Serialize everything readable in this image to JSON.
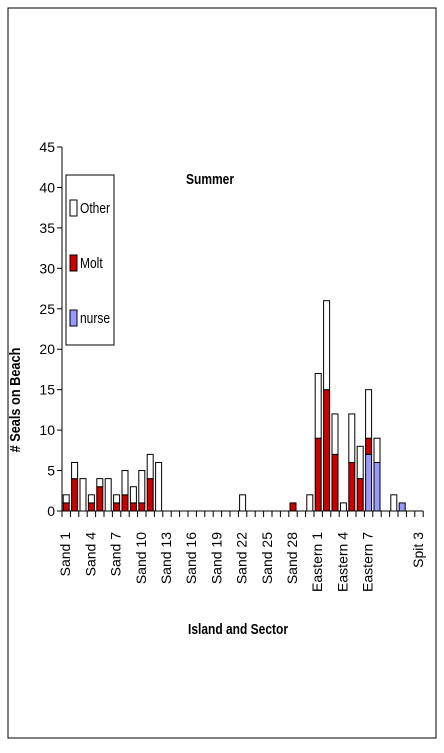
{
  "chart_data": {
    "type": "bar",
    "stacked": true,
    "title": "Summer",
    "x_label": "Island and Sector",
    "y_label": "# Seals on Beach",
    "categories": [
      "Sand 1",
      null,
      null,
      "Sand 4",
      null,
      null,
      "Sand 7",
      null,
      null,
      "Sand 10",
      null,
      null,
      "Sand 13",
      null,
      null,
      "Sand 16",
      null,
      null,
      "Sand 19",
      null,
      null,
      "Sand 22",
      null,
      null,
      "Sand 25",
      null,
      null,
      "Sand 28",
      null,
      null,
      "Eastern 1",
      null,
      null,
      "Eastern 4",
      null,
      null,
      "Eastern 7",
      null,
      null,
      null,
      null,
      null,
      "Spit 3"
    ],
    "series": [
      {
        "name": "nurse",
        "color": "#9999ff",
        "values": [
          0,
          0,
          0,
          0,
          0,
          0,
          0,
          0,
          0,
          0,
          0,
          0,
          0,
          0,
          0,
          0,
          0,
          0,
          0,
          0,
          0,
          0,
          0,
          0,
          0,
          0,
          0,
          0,
          0,
          0,
          0,
          0,
          0,
          0,
          0,
          0,
          7,
          6,
          0,
          0,
          1,
          0,
          0
        ]
      },
      {
        "name": "Molt",
        "color": "#cc0000",
        "values": [
          1,
          4,
          0,
          1,
          3,
          0,
          1,
          2,
          1,
          1,
          4,
          0,
          0,
          0,
          0,
          0,
          0,
          0,
          0,
          0,
          0,
          0,
          0,
          0,
          0,
          0,
          0,
          1,
          0,
          0,
          9,
          15,
          7,
          0,
          6,
          4,
          2,
          0,
          0,
          0,
          0,
          0,
          0
        ]
      },
      {
        "name": "Other",
        "color": "#ffffff",
        "values": [
          1,
          2,
          4,
          1,
          1,
          4,
          1,
          3,
          2,
          4,
          3,
          6,
          0,
          0,
          0,
          0,
          0,
          0,
          0,
          0,
          0,
          2,
          0,
          0,
          0,
          0,
          0,
          0,
          0,
          2,
          8,
          11,
          5,
          1,
          6,
          4,
          6,
          3,
          0,
          2,
          0,
          0,
          0
        ]
      }
    ],
    "ylim": [
      0,
      45
    ],
    "yticks": [
      0,
      5,
      10,
      15,
      20,
      25,
      30,
      35,
      40,
      45
    ]
  }
}
